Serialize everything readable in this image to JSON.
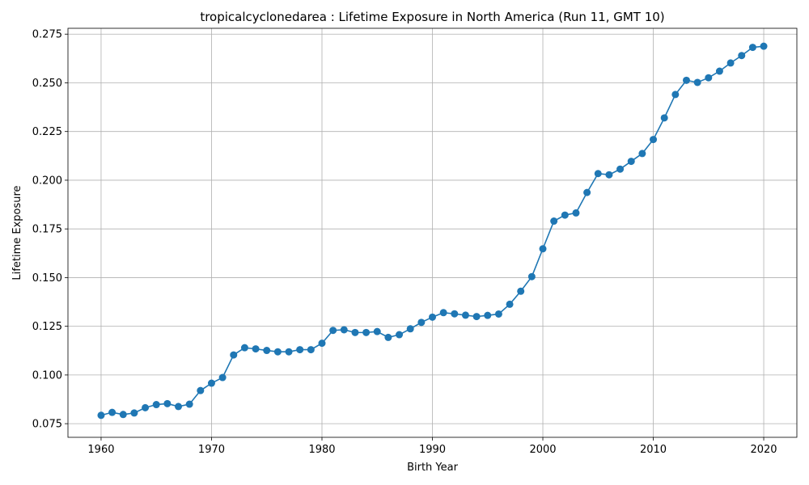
{
  "chart_data": {
    "type": "line",
    "title": "tropicalcyclonedarea : Lifetime Exposure in North America (Run 11, GMT 10)",
    "xlabel": "Birth Year",
    "ylabel": "Lifetime Exposure",
    "xlim": [
      1957,
      2023
    ],
    "ylim": [
      0.068,
      0.278
    ],
    "xticks": [
      1960,
      1970,
      1980,
      1990,
      2000,
      2010,
      2020
    ],
    "xtick_labels": [
      "1960",
      "1970",
      "1980",
      "1990",
      "2000",
      "2010",
      "2020"
    ],
    "yticks": [
      0.075,
      0.1,
      0.125,
      0.15,
      0.175,
      0.2,
      0.225,
      0.25,
      0.275
    ],
    "ytick_labels": [
      "0.075",
      "0.100",
      "0.125",
      "0.150",
      "0.175",
      "0.200",
      "0.225",
      "0.250",
      "0.275"
    ],
    "grid": true,
    "color": "#1f77b4",
    "marker": "circle",
    "series": [
      {
        "name": "Lifetime Exposure",
        "x": [
          1960,
          1961,
          1962,
          1963,
          1964,
          1965,
          1966,
          1967,
          1968,
          1969,
          1970,
          1971,
          1972,
          1973,
          1974,
          1975,
          1976,
          1977,
          1978,
          1979,
          1980,
          1981,
          1982,
          1983,
          1984,
          1985,
          1986,
          1987,
          1988,
          1989,
          1990,
          1991,
          1992,
          1993,
          1994,
          1995,
          1996,
          1997,
          1998,
          1999,
          2000,
          2001,
          2002,
          2003,
          2004,
          2005,
          2006,
          2007,
          2008,
          2009,
          2010,
          2011,
          2012,
          2013,
          2014,
          2015,
          2016,
          2017,
          2018,
          2019,
          2020
        ],
        "values": [
          0.0793,
          0.0808,
          0.0797,
          0.0805,
          0.0832,
          0.0848,
          0.0853,
          0.0838,
          0.085,
          0.092,
          0.0958,
          0.0987,
          0.1103,
          0.114,
          0.1134,
          0.1126,
          0.1119,
          0.1119,
          0.113,
          0.113,
          0.1163,
          0.1229,
          0.1232,
          0.1218,
          0.1218,
          0.1223,
          0.1193,
          0.1207,
          0.1237,
          0.127,
          0.1297,
          0.132,
          0.1314,
          0.1307,
          0.13,
          0.1306,
          0.1313,
          0.1363,
          0.143,
          0.1505,
          0.1648,
          0.179,
          0.1821,
          0.1832,
          0.1937,
          0.2034,
          0.2028,
          0.2057,
          0.2097,
          0.2137,
          0.2209,
          0.232,
          0.244,
          0.2513,
          0.2502,
          0.2526,
          0.256,
          0.2602,
          0.264,
          0.2682,
          0.2688
        ]
      }
    ]
  }
}
